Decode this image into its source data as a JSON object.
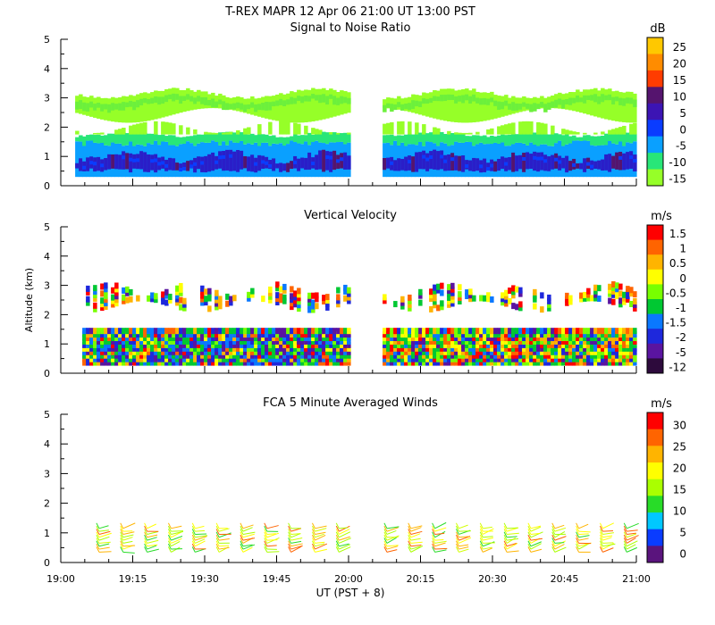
{
  "header": {
    "title": "T-REX   MAPR 12 Apr 06   21:00 UT   13:00   PST"
  },
  "chart_data": [
    {
      "type": "heatmap",
      "title": "Signal to Noise Ratio",
      "ylabel": "",
      "xlabel": "",
      "ylim": [
        0,
        5
      ],
      "yticks": [
        "0",
        "1",
        "2",
        "3",
        "4",
        "5"
      ],
      "xlim": [
        "19:00",
        "21:00"
      ],
      "colorbar": {
        "unit": "dB",
        "labels": [
          "25",
          "20",
          "15",
          "10",
          "5",
          "0",
          "-5",
          "-10",
          "-15"
        ],
        "colors": [
          "#ffc800",
          "#ff8c00",
          "#ff3c00",
          "#55146e",
          "#3c14b4",
          "#0a3cff",
          "#0aa0ff",
          "#28e678",
          "#96ff28"
        ]
      },
      "data_gap": [
        "20:00",
        "20:06"
      ],
      "layers": [
        {
          "altitude_km": [
            0.3,
            1.0
          ],
          "class": "0 to 5 dB",
          "color": "#1e1ec8"
        },
        {
          "altitude_km": [
            1.0,
            1.5
          ],
          "class": "-5 dB",
          "color": "#0aa0ff"
        },
        {
          "altitude_km": [
            1.5,
            3.2
          ],
          "class": "-10 to -15 dB",
          "color": "#96ff28"
        }
      ]
    },
    {
      "type": "heatmap",
      "title": "Vertical Velocity",
      "ylabel": "Altitude (km)",
      "xlabel": "",
      "ylim": [
        0,
        5
      ],
      "yticks": [
        "0",
        "1",
        "2",
        "3",
        "4",
        "5"
      ],
      "xlim": [
        "19:00",
        "21:00"
      ],
      "colorbar": {
        "unit": "m/s",
        "labels": [
          "1.5",
          "1",
          "0.5",
          "0",
          "-0.5",
          "-1",
          "-1.5",
          "-2",
          "-5",
          "-12"
        ],
        "colors": [
          "#ff0000",
          "#ff6400",
          "#ffb400",
          "#ffff00",
          "#78ff00",
          "#00c832",
          "#0a78ff",
          "#1e28dc",
          "#5a14a0",
          "#2d0a3c"
        ]
      },
      "data_gap": [
        "20:00",
        "20:06"
      ],
      "layers": [
        {
          "altitude_km": [
            0.3,
            1.6
          ],
          "class": "mixed"
        },
        {
          "altitude_km": [
            2.2,
            3.2
          ],
          "class": "sparse"
        }
      ]
    },
    {
      "type": "scatter",
      "title": "FCA 5 Minute Averaged Winds",
      "ylabel": "",
      "xlabel": "UT  (PST + 8)",
      "ylim": [
        0,
        5
      ],
      "yticks": [
        "0",
        "1",
        "2",
        "3",
        "4",
        "5"
      ],
      "x_tick_labels": [
        "19:00",
        "19:15",
        "19:30",
        "19:45",
        "20:00",
        "20:15",
        "20:30",
        "20:45",
        "21:00"
      ],
      "colorbar": {
        "unit": "m/s",
        "labels": [
          "30",
          "25",
          "20",
          "15",
          "10",
          "5",
          "0"
        ],
        "colors": [
          "#ff0000",
          "#ff6400",
          "#ffb400",
          "#ffff00",
          "#aaff00",
          "#28dc28",
          "#00c8ff",
          "#0a3cff",
          "#5a147d"
        ]
      },
      "wind_barb_times": [
        "19:08",
        "19:13",
        "19:18",
        "19:23",
        "19:28",
        "19:33",
        "19:38",
        "19:43",
        "19:48",
        "19:53",
        "19:58",
        "20:08",
        "20:13",
        "20:18",
        "20:23",
        "20:28",
        "20:33",
        "20:38",
        "20:43",
        "20:48",
        "20:53",
        "20:58"
      ],
      "wind_barb_altitude_km": [
        0.3,
        1.3
      ]
    }
  ]
}
